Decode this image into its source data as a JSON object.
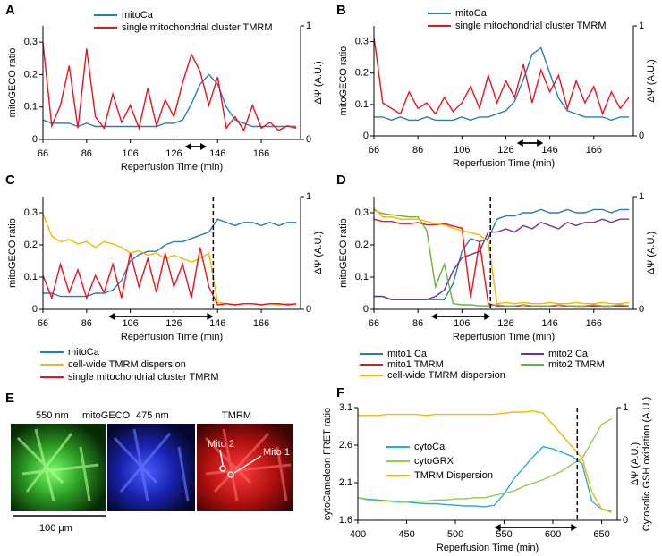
{
  "chart_data": [
    {
      "type": "line",
      "panel": "A",
      "x_label": "Reperfusion Time (min)",
      "y_label": "mitoGECO ratio",
      "y2_label": [
        "ΔΨ (A.U.)"
      ],
      "x": [
        66,
        70,
        74,
        78,
        82,
        86,
        90,
        94,
        98,
        102,
        106,
        110,
        114,
        118,
        122,
        126,
        130,
        134,
        138,
        142,
        146,
        150,
        154,
        158,
        162,
        166,
        170,
        174,
        178,
        182
      ],
      "series": [
        {
          "name": "mitoCa",
          "color": "#2a7ab8",
          "values": [
            0.06,
            0.05,
            0.05,
            0.05,
            0.04,
            0.05,
            0.04,
            0.04,
            0.04,
            0.04,
            0.04,
            0.04,
            0.04,
            0.04,
            0.05,
            0.05,
            0.06,
            0.11,
            0.17,
            0.2,
            0.17,
            0.1,
            0.06,
            0.05,
            0.04,
            0.04,
            0.04,
            0.04,
            0.04,
            0.04
          ]
        },
        {
          "name": "single mitochondrial cluster TMRM",
          "color": "#e8141c",
          "axis": "y2",
          "values": [
            0.85,
            0.12,
            0.3,
            0.65,
            0.1,
            0.8,
            0.2,
            0.1,
            0.4,
            0.15,
            0.3,
            0.1,
            0.45,
            0.12,
            0.35,
            0.2,
            0.5,
            0.75,
            0.6,
            0.3,
            0.55,
            0.1,
            0.2,
            0.08,
            0.3,
            0.1,
            0.15,
            0.08,
            0.12,
            0.1
          ]
        }
      ],
      "xlim": [
        66,
        184
      ],
      "xticks": [
        66,
        86,
        106,
        126,
        146,
        166
      ],
      "ylim": [
        0,
        0.35
      ],
      "yticks": [
        0,
        0.1,
        0.2,
        0.3
      ],
      "y2lim": [
        0,
        1
      ],
      "y2ticks": [
        0,
        1
      ],
      "arrow": [
        131,
        141
      ]
    },
    {
      "type": "line",
      "panel": "B",
      "x_label": "Reperfusion Time (min)",
      "y_label": "mitoGECO ratio",
      "y2_label": [
        "ΔΨ (A.U.)"
      ],
      "x": [
        66,
        70,
        74,
        78,
        82,
        86,
        90,
        94,
        98,
        102,
        106,
        110,
        114,
        118,
        122,
        126,
        130,
        134,
        138,
        142,
        146,
        150,
        154,
        158,
        162,
        166,
        170,
        174,
        178,
        182
      ],
      "series": [
        {
          "name": "mitoCa",
          "color": "#2a7ab8",
          "values": [
            0.06,
            0.06,
            0.05,
            0.06,
            0.05,
            0.05,
            0.06,
            0.05,
            0.05,
            0.05,
            0.06,
            0.05,
            0.06,
            0.06,
            0.07,
            0.08,
            0.11,
            0.18,
            0.26,
            0.28,
            0.2,
            0.12,
            0.08,
            0.07,
            0.06,
            0.06,
            0.06,
            0.05,
            0.06,
            0.06
          ]
        },
        {
          "name": "single mitochondrial cluster TMRM",
          "color": "#e8141c",
          "axis": "y2",
          "values": [
            0.9,
            0.3,
            0.25,
            0.2,
            0.4,
            0.25,
            0.3,
            0.2,
            0.35,
            0.22,
            0.3,
            0.45,
            0.25,
            0.55,
            0.3,
            0.5,
            0.35,
            0.65,
            0.3,
            0.6,
            0.4,
            0.55,
            0.25,
            0.5,
            0.3,
            0.45,
            0.2,
            0.4,
            0.25,
            0.35
          ]
        }
      ],
      "xlim": [
        66,
        184
      ],
      "xticks": [
        66,
        86,
        106,
        126,
        146,
        166
      ],
      "ylim": [
        0,
        0.35
      ],
      "yticks": [
        0,
        0.1,
        0.2,
        0.3
      ],
      "y2lim": [
        0,
        1
      ],
      "y2ticks": [
        0,
        1
      ],
      "arrow": [
        131,
        143
      ]
    },
    {
      "type": "line",
      "panel": "C",
      "x_label": "Reperfusion Time (min)",
      "y_label": "mitoGECO ratio",
      "y2_label": [
        "ΔΨ (A.U.)"
      ],
      "x": [
        66,
        70,
        74,
        78,
        82,
        86,
        90,
        94,
        98,
        102,
        106,
        110,
        114,
        118,
        122,
        126,
        130,
        134,
        138,
        142,
        146,
        150,
        154,
        158,
        162,
        166,
        170,
        174,
        178,
        182
      ],
      "series": [
        {
          "name": "mitoCa",
          "color": "#2a7ab8",
          "values": [
            0.05,
            0.05,
            0.04,
            0.04,
            0.04,
            0.04,
            0.05,
            0.05,
            0.06,
            0.09,
            0.15,
            0.17,
            0.18,
            0.18,
            0.2,
            0.21,
            0.21,
            0.22,
            0.23,
            0.24,
            0.28,
            0.27,
            0.26,
            0.27,
            0.27,
            0.26,
            0.27,
            0.26,
            0.27,
            0.27
          ]
        },
        {
          "name": "cell-wide TMRM dispersion",
          "color": "#f5b800",
          "axis": "y2",
          "values": [
            0.85,
            0.65,
            0.6,
            0.62,
            0.58,
            0.6,
            0.55,
            0.6,
            0.58,
            0.55,
            0.5,
            0.52,
            0.48,
            0.5,
            0.45,
            0.48,
            0.45,
            0.42,
            0.45,
            0.5,
            0.06,
            0.05,
            0.04,
            0.05,
            0.05,
            0.04,
            0.05,
            0.04,
            0.05,
            0.04
          ]
        },
        {
          "name": "single mitochondrial cluster TMRM",
          "color": "#e8141c",
          "axis": "y2",
          "values": [
            0.3,
            0.1,
            0.4,
            0.15,
            0.35,
            0.1,
            0.3,
            0.15,
            0.4,
            0.1,
            0.5,
            0.2,
            0.45,
            0.15,
            0.5,
            0.2,
            0.4,
            0.1,
            0.55,
            0.2,
            0.04,
            0.05,
            0.04,
            0.05,
            0.05,
            0.04,
            0.05,
            0.05,
            0.04,
            0.05
          ]
        }
      ],
      "xlim": [
        66,
        184
      ],
      "xticks": [
        66,
        86,
        106,
        126,
        146,
        166
      ],
      "ylim": [
        0,
        0.35
      ],
      "yticks": [
        0,
        0.1,
        0.2,
        0.3
      ],
      "y2lim": [
        0,
        1
      ],
      "y2ticks": [
        0,
        1
      ],
      "arrow": [
        96,
        144
      ],
      "vline": 144
    },
    {
      "type": "line",
      "panel": "D",
      "x_label": "Reperfusion Time (min)",
      "y_label": "mitoGECO ratio",
      "y2_label": [
        "ΔΨ (A.U.)"
      ],
      "x": [
        66,
        70,
        74,
        78,
        82,
        86,
        90,
        94,
        98,
        102,
        106,
        110,
        114,
        118,
        122,
        126,
        130,
        134,
        138,
        142,
        146,
        150,
        154,
        158,
        162,
        166,
        170,
        174,
        178,
        182
      ],
      "series": [
        {
          "name": "mito1 Ca",
          "color": "#2a7ab8",
          "values": [
            0.04,
            0.04,
            0.03,
            0.03,
            0.03,
            0.03,
            0.03,
            0.03,
            0.03,
            0.08,
            0.18,
            0.22,
            0.21,
            0.22,
            0.28,
            0.29,
            0.29,
            0.3,
            0.3,
            0.31,
            0.3,
            0.3,
            0.31,
            0.3,
            0.3,
            0.31,
            0.31,
            0.3,
            0.31,
            0.31
          ]
        },
        {
          "name": "mito2 Ca",
          "color": "#7030a0",
          "values": [
            0.04,
            0.04,
            0.03,
            0.03,
            0.03,
            0.03,
            0.03,
            0.04,
            0.06,
            0.12,
            0.16,
            0.17,
            0.18,
            0.24,
            0.24,
            0.25,
            0.24,
            0.26,
            0.25,
            0.27,
            0.26,
            0.25,
            0.27,
            0.26,
            0.27,
            0.27,
            0.28,
            0.27,
            0.28,
            0.28
          ]
        },
        {
          "name": "mito1 TMRM",
          "color": "#e8141c",
          "axis": "y2",
          "values": [
            0.8,
            0.78,
            0.78,
            0.76,
            0.76,
            0.77,
            0.75,
            0.75,
            0.76,
            0.74,
            0.72,
            0.1,
            0.6,
            0.05,
            0.03,
            0.03,
            0.03,
            0.02,
            0.03,
            0.02,
            0.03,
            0.02,
            0.03,
            0.02,
            0.02,
            0.03,
            0.02,
            0.02,
            0.03,
            0.02
          ]
        },
        {
          "name": "mito2 TMRM",
          "color": "#6ab23c",
          "axis": "y2",
          "values": [
            0.88,
            0.85,
            0.84,
            0.83,
            0.82,
            0.82,
            0.7,
            0.2,
            0.4,
            0.05,
            0.04,
            0.04,
            0.03,
            0.03,
            0.04,
            0.03,
            0.03,
            0.04,
            0.03,
            0.03,
            0.03,
            0.04,
            0.03,
            0.03,
            0.03,
            0.04,
            0.03,
            0.03,
            0.04,
            0.03
          ]
        },
        {
          "name": "cell-wide TMRM dispersion",
          "color": "#f5b800",
          "axis": "y2",
          "values": [
            0.9,
            0.82,
            0.82,
            0.8,
            0.8,
            0.8,
            0.78,
            0.76,
            0.75,
            0.72,
            0.7,
            0.68,
            0.66,
            0.6,
            0.05,
            0.06,
            0.05,
            0.06,
            0.05,
            0.05,
            0.06,
            0.05,
            0.05,
            0.06,
            0.05,
            0.05,
            0.06,
            0.05,
            0.05,
            0.06
          ]
        }
      ],
      "xlim": [
        66,
        184
      ],
      "xticks": [
        66,
        86,
        106,
        126,
        146,
        166
      ],
      "ylim": [
        0,
        0.35
      ],
      "yticks": [
        0,
        0.1,
        0.2,
        0.3
      ],
      "y2lim": [
        0,
        1
      ],
      "y2ticks": [
        0,
        1
      ],
      "arrow": [
        92,
        119
      ],
      "vline": 119
    },
    {
      "type": "line",
      "panel": "F",
      "x_label": "Reperfusion Time (min)",
      "y_label": "cytoCameleon FRET ratio",
      "y2_label": [
        "ΔΨ (A.U.)",
        "Cytosolic GSH oxidation (A.U.)"
      ],
      "x": [
        400,
        410,
        420,
        430,
        440,
        450,
        460,
        470,
        480,
        490,
        500,
        510,
        520,
        530,
        540,
        550,
        560,
        570,
        580,
        590,
        600,
        610,
        620,
        630,
        640,
        650,
        660
      ],
      "series": [
        {
          "name": "cytoCa",
          "color": "#2aa9e0",
          "values": [
            1.9,
            1.88,
            1.87,
            1.86,
            1.85,
            1.84,
            1.83,
            1.82,
            1.82,
            1.81,
            1.8,
            1.79,
            1.79,
            1.78,
            1.8,
            1.95,
            2.15,
            2.3,
            2.45,
            2.58,
            2.55,
            2.5,
            2.45,
            2.35,
            1.85,
            1.75,
            1.72
          ]
        },
        {
          "name": "cytoGRX",
          "color": "#8fce50",
          "axis": "y2",
          "values": [
            0.2,
            0.18,
            0.17,
            0.17,
            0.16,
            0.16,
            0.17,
            0.17,
            0.18,
            0.18,
            0.19,
            0.19,
            0.2,
            0.2,
            0.22,
            0.24,
            0.26,
            0.3,
            0.33,
            0.36,
            0.4,
            0.44,
            0.5,
            0.55,
            0.7,
            0.85,
            0.9
          ]
        },
        {
          "name": "TMRM Dispersion",
          "color": "#f5b800",
          "axis": "y2",
          "values": [
            0.93,
            0.93,
            0.93,
            0.94,
            0.94,
            0.94,
            0.94,
            0.93,
            0.94,
            0.94,
            0.94,
            0.94,
            0.94,
            0.94,
            0.94,
            0.95,
            0.96,
            0.96,
            0.97,
            0.95,
            0.85,
            0.75,
            0.65,
            0.55,
            0.25,
            0.1,
            0.07
          ]
        }
      ],
      "xlim": [
        400,
        666
      ],
      "xticks": [
        400,
        450,
        500,
        550,
        600,
        650
      ],
      "ylim": [
        1.6,
        3.1
      ],
      "yticks": [
        1.6,
        2.1,
        2.6,
        3.1
      ],
      "y2lim": [
        0,
        1
      ],
      "y2ticks": [
        0,
        1
      ],
      "arrow": [
        540,
        625
      ],
      "vline": 625
    }
  ],
  "panel_e": {
    "panel": "E",
    "labels": [
      "550 nm",
      "mitoGECO",
      "475 nm",
      "TMRM"
    ],
    "mito_labels": [
      "Mito 2",
      "Mito 1"
    ],
    "scale_bar": "100 μm"
  }
}
